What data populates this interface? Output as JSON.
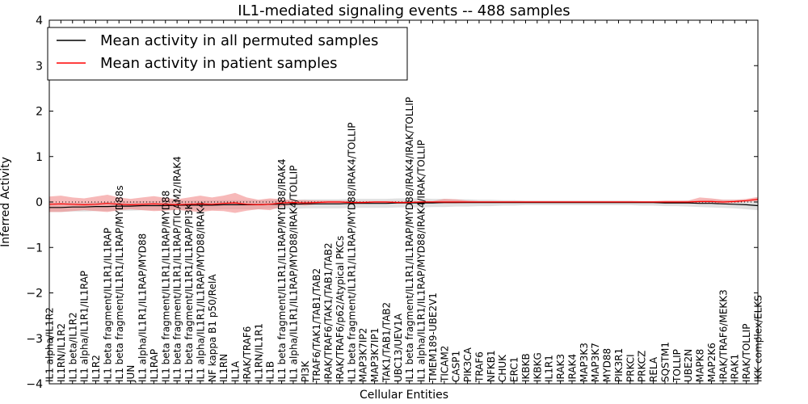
{
  "chart_data": {
    "type": "line",
    "title": "IL1-mediated signaling events -- 488 samples",
    "xlabel": "Cellular Entities",
    "ylabel": "Inferred Activity",
    "ylim": [
      -4,
      4
    ],
    "yticks": [
      -4,
      -3,
      -2,
      -1,
      0,
      1,
      2,
      3,
      4
    ],
    "ytick_labels": [
      "−4",
      "−3",
      "−2",
      "−1",
      "0",
      "1",
      "2",
      "3",
      "4"
    ],
    "legend_position": "top-left",
    "categories": [
      "IL1 alpha/IL1R2",
      "IL1RN/IL1R2",
      "IL1 beta/IL1R2",
      "IL1 alpha/IL1R1/IL1RAP",
      "IL1R2",
      "IL1 beta fragment/IL1R1/IL1RAP",
      "IL1 beta fragment/IL1R1/IL1RAP/MYD88s",
      "JUN",
      "IL1 alpha/IL1R1/IL1RAP/MYD88",
      "IL1RAP",
      "IL1 beta fragment/IL1R1/IL1RAP/MYD88",
      "IL1 beta fragment/IL1R1/IL1RAP/TICAM2/IRAK4",
      "IL1 beta fragment/IL1R1/IL1RAP/PI3K",
      "IL1 alpha/IL1R1/IL1RAP/MYD88/IRAK4",
      "NF kappa B1 p50/RelA",
      "IL1RN",
      "IL1A",
      "IRAK/TRAF6",
      "IL1RN/IL1R1",
      "IL1B",
      "IL1 beta fragment/IL1R1/IL1RAP/MYD88/IRAK4",
      "IL1 alpha/IL1R1/IL1RAP/MYD88/IRAK4/TOLLIP",
      "PI3K",
      "TRAF6/TAK1/TAB1/TAB2",
      "IRAK/TRAF6/TAK1/TAB1/TAB2",
      "IRAK/TRAF6/p62/Atypical PKCs",
      "IL1 beta fragment/IL1R1/IL1RAP/MYD88/IRAK4/TOLLIP",
      "MAP3K7IP2",
      "MAP3K7IP1",
      "TAK1/TAB1/TAB2",
      "UBC13/UEV1A",
      "IL1 beta fragment/IL1R1/IL1RAP/MYD88/IRAK4/IRAK/TOLLIP",
      "IL1 alpha/IL1R1/IL1RAP/MYD88/IRAK4/IRAK/TOLLIP",
      "TMEM189-UBE2V1",
      "TICAM2",
      "CASP1",
      "PIK3CA",
      "TRAF6",
      "NFKB1",
      "CHUK",
      "ERC1",
      "IKBKB",
      "IKBKG",
      "IL1R1",
      "IRAK3",
      "IRAK4",
      "MAP3K3",
      "MAP3K7",
      "MYD88",
      "PIK3R1",
      "PRKCI",
      "PRKCZ",
      "RELA",
      "SQSTM1",
      "TOLLIP",
      "UBE2N",
      "MAPK8",
      "MAP2K6",
      "IRAK/TRAF6/MEKK3",
      "IRAK1",
      "IRAK/TOLLIP",
      "IKK complex/ELKS"
    ],
    "series": [
      {
        "name": "Mean activity in all permuted samples",
        "color": "#000000",
        "values": [
          -0.12,
          -0.12,
          -0.11,
          -0.11,
          -0.1,
          -0.1,
          -0.09,
          -0.09,
          -0.08,
          -0.08,
          -0.08,
          -0.07,
          -0.07,
          -0.07,
          -0.07,
          -0.06,
          -0.06,
          -0.06,
          -0.06,
          -0.05,
          -0.05,
          -0.05,
          -0.04,
          -0.04,
          -0.04,
          -0.04,
          -0.03,
          -0.03,
          -0.03,
          -0.03,
          -0.02,
          -0.02,
          -0.02,
          -0.02,
          -0.01,
          -0.01,
          -0.01,
          -0.01,
          -0.01,
          -0.01,
          -0.01,
          -0.01,
          -0.01,
          -0.01,
          -0.01,
          -0.01,
          -0.01,
          -0.01,
          -0.01,
          -0.01,
          -0.01,
          -0.01,
          -0.01,
          -0.02,
          -0.02,
          -0.02,
          -0.03,
          -0.03,
          -0.04,
          -0.05,
          -0.06,
          -0.08
        ],
        "band_low": [
          -0.22,
          -0.22,
          -0.21,
          -0.21,
          -0.2,
          -0.2,
          -0.19,
          -0.19,
          -0.18,
          -0.18,
          -0.18,
          -0.17,
          -0.17,
          -0.17,
          -0.17,
          -0.16,
          -0.16,
          -0.16,
          -0.16,
          -0.15,
          -0.15,
          -0.15,
          -0.14,
          -0.14,
          -0.14,
          -0.14,
          -0.13,
          -0.13,
          -0.13,
          -0.13,
          -0.12,
          -0.12,
          -0.12,
          -0.11,
          -0.11,
          -0.1,
          -0.1,
          -0.09,
          -0.09,
          -0.08,
          -0.08,
          -0.07,
          -0.07,
          -0.07,
          -0.07,
          -0.07,
          -0.07,
          -0.07,
          -0.07,
          -0.07,
          -0.07,
          -0.08,
          -0.08,
          -0.09,
          -0.09,
          -0.1,
          -0.11,
          -0.12,
          -0.13,
          -0.14,
          -0.16,
          -0.18
        ],
        "band_high": [
          -0.02,
          -0.02,
          -0.01,
          -0.01,
          0.0,
          0.0,
          0.01,
          0.01,
          0.02,
          0.02,
          0.02,
          0.03,
          0.03,
          0.03,
          0.03,
          0.04,
          0.04,
          0.04,
          0.04,
          0.05,
          0.05,
          0.05,
          0.06,
          0.06,
          0.06,
          0.06,
          0.07,
          0.07,
          0.07,
          0.07,
          0.08,
          0.08,
          0.08,
          0.07,
          0.07,
          0.06,
          0.06,
          0.05,
          0.05,
          0.04,
          0.04,
          0.03,
          0.03,
          0.03,
          0.03,
          0.03,
          0.03,
          0.03,
          0.03,
          0.03,
          0.03,
          0.02,
          0.02,
          0.02,
          0.02,
          0.03,
          0.04,
          0.05,
          0.05,
          0.05,
          0.04,
          0.03
        ],
        "band_color": "#bbbbbb"
      },
      {
        "name": "Mean activity in patient samples",
        "color": "#ff0000",
        "values": [
          -0.05,
          -0.04,
          -0.05,
          -0.06,
          -0.05,
          -0.03,
          -0.05,
          -0.06,
          -0.05,
          -0.04,
          -0.05,
          -0.06,
          -0.05,
          -0.04,
          -0.05,
          -0.03,
          -0.02,
          -0.05,
          -0.06,
          -0.05,
          -0.02,
          -0.01,
          -0.02,
          -0.01,
          0.0,
          0.0,
          -0.01,
          -0.01,
          0.0,
          0.0,
          -0.01,
          -0.01,
          0.0,
          0.0,
          0.0,
          0.0,
          0.0,
          0.0,
          0.0,
          0.0,
          0.0,
          0.0,
          0.0,
          0.0,
          0.0,
          0.0,
          0.0,
          0.0,
          0.0,
          0.0,
          0.0,
          0.0,
          0.0,
          0.0,
          0.0,
          0.0,
          0.01,
          0.01,
          0.0,
          0.01,
          0.03,
          0.06
        ],
        "band_low": [
          -0.22,
          -0.22,
          -0.2,
          -0.18,
          -0.2,
          -0.22,
          -0.18,
          -0.16,
          -0.18,
          -0.2,
          -0.19,
          -0.17,
          -0.2,
          -0.22,
          -0.19,
          -0.2,
          -0.24,
          -0.19,
          -0.16,
          -0.18,
          -0.1,
          -0.06,
          -0.08,
          -0.05,
          -0.03,
          -0.03,
          -0.04,
          -0.03,
          -0.02,
          -0.02,
          -0.03,
          -0.03,
          -0.02,
          -0.02,
          -0.03,
          -0.03,
          -0.02,
          -0.02,
          -0.02,
          -0.02,
          -0.02,
          -0.02,
          -0.02,
          -0.02,
          -0.02,
          -0.02,
          -0.02,
          -0.02,
          -0.02,
          -0.02,
          -0.02,
          -0.02,
          -0.02,
          -0.03,
          -0.03,
          -0.03,
          -0.02,
          -0.02,
          -0.03,
          -0.02,
          0.0,
          0.02
        ],
        "band_high": [
          0.12,
          0.14,
          0.1,
          0.08,
          0.12,
          0.16,
          0.1,
          0.07,
          0.1,
          0.13,
          0.09,
          0.06,
          0.1,
          0.14,
          0.1,
          0.14,
          0.2,
          0.1,
          0.05,
          0.08,
          0.06,
          0.04,
          0.04,
          0.03,
          0.03,
          0.03,
          0.02,
          0.02,
          0.02,
          0.02,
          0.02,
          0.02,
          0.02,
          0.02,
          0.07,
          0.06,
          0.03,
          0.02,
          0.02,
          0.02,
          0.02,
          0.02,
          0.02,
          0.02,
          0.02,
          0.02,
          0.02,
          0.02,
          0.02,
          0.02,
          0.02,
          0.02,
          0.02,
          0.03,
          0.03,
          0.03,
          0.1,
          0.08,
          0.05,
          0.05,
          0.07,
          0.11
        ],
        "band_color": "#f08080"
      }
    ]
  }
}
